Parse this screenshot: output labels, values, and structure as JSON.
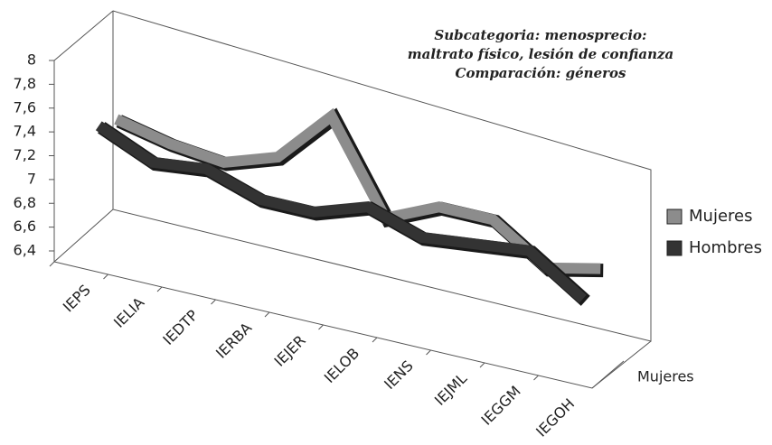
{
  "chart_data": {
    "type": "line3d",
    "title": [
      "Subcategoria: menosprecio:",
      "maltrato físico, lesión de confianza",
      "Comparación: géneros"
    ],
    "categories": [
      "IEPS",
      "IELIA",
      "IEDTP",
      "IERBA",
      "IEJER",
      "IELOB",
      "IENS",
      "IEJML",
      "IEGGM",
      "IEGOH"
    ],
    "depth_categories": [
      "Mujeres"
    ],
    "series": [
      {
        "name": "Mujeres",
        "color": "#8c8c8c",
        "values": [
          7.35,
          7.25,
          7.2,
          7.35,
          7.8,
          7.05,
          7.25,
          7.25,
          6.95,
          7.05
        ]
      },
      {
        "name": "Hombres",
        "color": "#333333",
        "values": [
          7.4,
          7.2,
          7.25,
          7.1,
          7.1,
          7.25,
          7.1,
          7.15,
          7.2,
          6.9
        ]
      }
    ],
    "ylim": [
      6.4,
      8
    ],
    "yticks": [
      {
        "value": 6.4,
        "label": "6,4"
      },
      {
        "value": 6.6,
        "label": "6,6"
      },
      {
        "value": 6.8,
        "label": "6,8"
      },
      7,
      {
        "value": 7.2,
        "label": "7,2"
      },
      {
        "value": 7.4,
        "label": "7,4"
      },
      {
        "value": 7.6,
        "label": "7,6"
      },
      {
        "value": 7.8,
        "label": "7,8"
      },
      8
    ],
    "legend": "right",
    "grid": false
  }
}
